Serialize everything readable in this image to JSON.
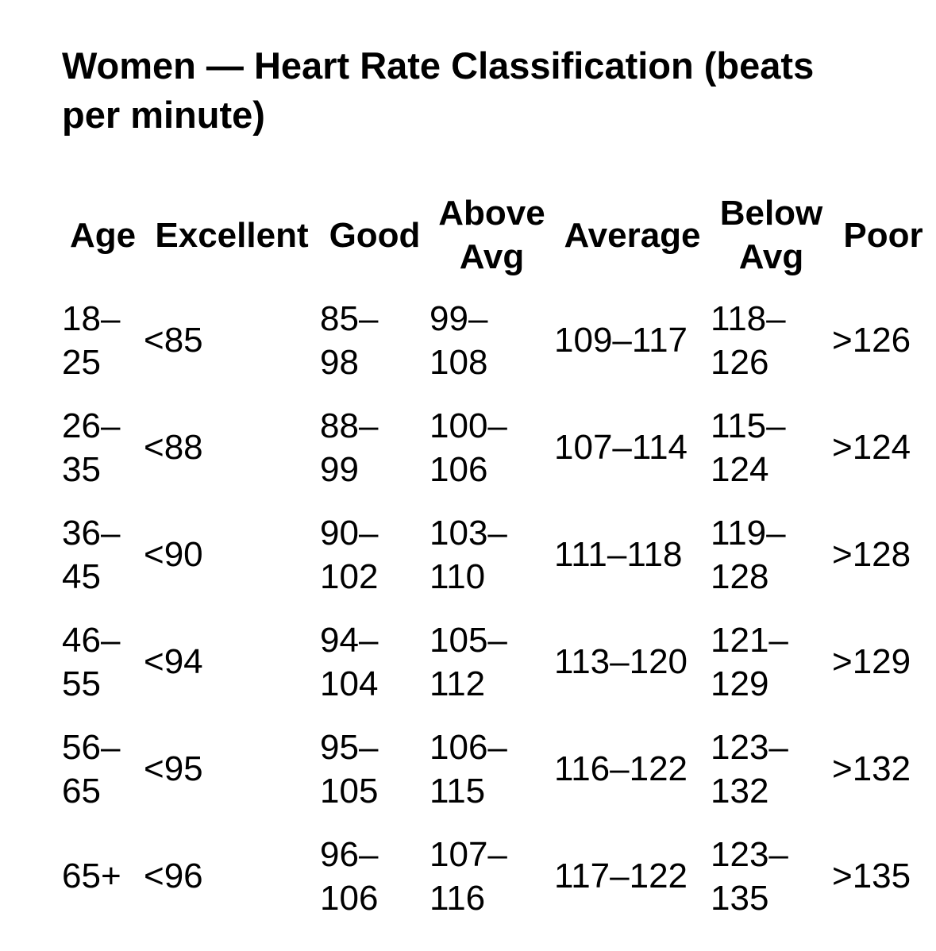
{
  "title": "Women — Heart Rate Classification (beats\nper minute)",
  "colors": {
    "background": "#ffffff",
    "text": "#000000"
  },
  "table": {
    "headers": [
      "Age",
      "Excellent",
      "Good",
      "Above\nAvg",
      "Average",
      "Below\nAvg",
      "Poor"
    ],
    "rows": [
      [
        "18–\n25",
        "<85",
        "85–\n98",
        "99–\n108",
        "109–117",
        "118–\n126",
        ">126"
      ],
      [
        "26–\n35",
        "<88",
        "88–\n99",
        "100–\n106",
        "107–114",
        "115–\n124",
        ">124"
      ],
      [
        "36–\n45",
        "<90",
        "90–\n102",
        "103–\n110",
        "111–118",
        "119–\n128",
        ">128"
      ],
      [
        "46–\n55",
        "<94",
        "94–\n104",
        "105–\n112",
        "113–120",
        "121–\n129",
        ">129"
      ],
      [
        "56–\n65",
        "<95",
        "95–\n105",
        "106–\n115",
        "116–122",
        "123–\n132",
        ">132"
      ],
      [
        "65+",
        "<96",
        "96–\n106",
        "107–\n116",
        "117–122",
        "123–\n135",
        ">135"
      ]
    ]
  },
  "chart_data": {
    "type": "table",
    "title": "Women — Heart Rate Classification (beats per minute)",
    "columns": [
      "Age",
      "Excellent",
      "Good",
      "Above Avg",
      "Average",
      "Below Avg",
      "Poor"
    ],
    "rows": [
      [
        "18–25",
        "<85",
        "85–98",
        "99–108",
        "109–117",
        "118–126",
        ">126"
      ],
      [
        "26–35",
        "<88",
        "88–99",
        "100–106",
        "107–114",
        "115–124",
        ">124"
      ],
      [
        "36–45",
        "<90",
        "90–102",
        "103–110",
        "111–118",
        "119–128",
        ">128"
      ],
      [
        "46–55",
        "<94",
        "94–104",
        "105–112",
        "113–120",
        "121–129",
        ">129"
      ],
      [
        "56–65",
        "<95",
        "95–105",
        "106–115",
        "116–122",
        "123–132",
        ">132"
      ],
      [
        "65+",
        "<96",
        "96–106",
        "107–116",
        "117–122",
        "123–135",
        ">135"
      ]
    ],
    "layout": {
      "gridlines": false,
      "header_style": "bold-centered",
      "body_alignment": "left"
    }
  }
}
